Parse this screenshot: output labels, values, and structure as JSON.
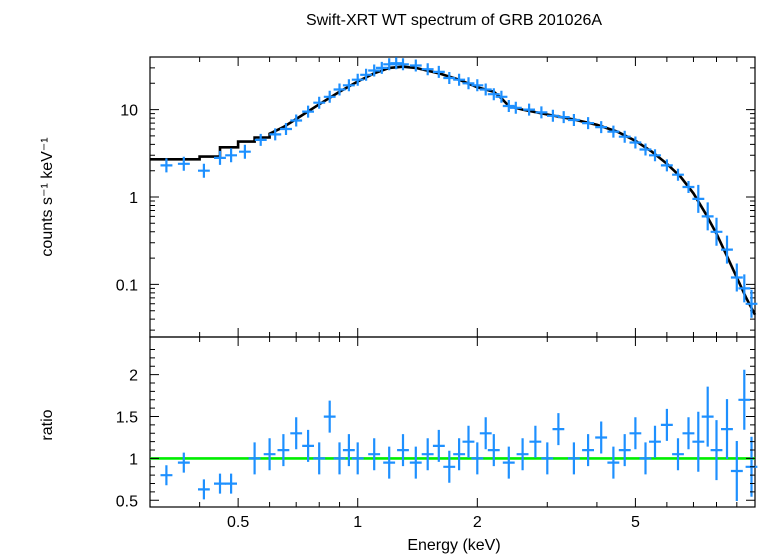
{
  "chart_data": [
    {
      "type": "scatter",
      "panel": "spectrum",
      "title": "Swift-XRT WT spectrum of GRB 201026A",
      "ylabel": "counts s⁻¹ keV⁻¹",
      "xlabel": "",
      "xscale": "log",
      "yscale": "log",
      "xlim": [
        0.3,
        10
      ],
      "ylim": [
        0.025,
        40
      ],
      "yticks": [
        {
          "value": 0.1,
          "label": "0.1"
        },
        {
          "value": 1,
          "label": "1"
        },
        {
          "value": 10,
          "label": "10"
        }
      ],
      "series": [
        {
          "kind": "data",
          "color": "#1e90ff",
          "points": [
            {
              "x": 0.33,
              "y": 2.3
            },
            {
              "x": 0.365,
              "y": 2.4
            },
            {
              "x": 0.41,
              "y": 2.0
            },
            {
              "x": 0.45,
              "y": 2.8
            },
            {
              "x": 0.48,
              "y": 3.0
            },
            {
              "x": 0.52,
              "y": 3.3
            },
            {
              "x": 0.57,
              "y": 4.5
            },
            {
              "x": 0.62,
              "y": 5.2
            },
            {
              "x": 0.66,
              "y": 6.0
            },
            {
              "x": 0.7,
              "y": 7.5
            },
            {
              "x": 0.75,
              "y": 9.5
            },
            {
              "x": 0.8,
              "y": 12
            },
            {
              "x": 0.85,
              "y": 14
            },
            {
              "x": 0.9,
              "y": 17
            },
            {
              "x": 0.95,
              "y": 19
            },
            {
              "x": 1.0,
              "y": 22
            },
            {
              "x": 1.05,
              "y": 25
            },
            {
              "x": 1.1,
              "y": 28
            },
            {
              "x": 1.15,
              "y": 30
            },
            {
              "x": 1.2,
              "y": 33
            },
            {
              "x": 1.25,
              "y": 34
            },
            {
              "x": 1.3,
              "y": 33
            },
            {
              "x": 1.4,
              "y": 32
            },
            {
              "x": 1.5,
              "y": 29
            },
            {
              "x": 1.6,
              "y": 27
            },
            {
              "x": 1.7,
              "y": 23
            },
            {
              "x": 1.8,
              "y": 22
            },
            {
              "x": 1.9,
              "y": 20
            },
            {
              "x": 2.0,
              "y": 19
            },
            {
              "x": 2.1,
              "y": 17
            },
            {
              "x": 2.2,
              "y": 15
            },
            {
              "x": 2.3,
              "y": 14
            },
            {
              "x": 2.4,
              "y": 11
            },
            {
              "x": 2.5,
              "y": 10.5
            },
            {
              "x": 2.7,
              "y": 10
            },
            {
              "x": 2.9,
              "y": 9.3
            },
            {
              "x": 3.1,
              "y": 8.5
            },
            {
              "x": 3.3,
              "y": 8.2
            },
            {
              "x": 3.5,
              "y": 7.6
            },
            {
              "x": 3.8,
              "y": 7.0
            },
            {
              "x": 4.1,
              "y": 6.3
            },
            {
              "x": 4.4,
              "y": 5.6
            },
            {
              "x": 4.7,
              "y": 4.9
            },
            {
              "x": 5.0,
              "y": 4.2
            },
            {
              "x": 5.3,
              "y": 3.5
            },
            {
              "x": 5.6,
              "y": 3.0
            },
            {
              "x": 6.0,
              "y": 2.3
            },
            {
              "x": 6.4,
              "y": 1.8
            },
            {
              "x": 6.8,
              "y": 1.3
            },
            {
              "x": 7.2,
              "y": 0.95
            },
            {
              "x": 7.6,
              "y": 0.6
            },
            {
              "x": 8.0,
              "y": 0.4
            },
            {
              "x": 8.5,
              "y": 0.25
            },
            {
              "x": 9.0,
              "y": 0.12
            },
            {
              "x": 9.4,
              "y": 0.09
            },
            {
              "x": 9.8,
              "y": 0.06
            }
          ]
        },
        {
          "kind": "model",
          "color": "#000000",
          "points": [
            {
              "x": 0.3,
              "y": 2.7
            },
            {
              "x": 0.4,
              "y": 2.9
            },
            {
              "x": 0.45,
              "y": 3.7
            },
            {
              "x": 0.5,
              "y": 4.3
            },
            {
              "x": 0.55,
              "y": 4.8
            },
            {
              "x": 0.6,
              "y": 5.3
            },
            {
              "x": 0.65,
              "y": 6.3
            },
            {
              "x": 0.7,
              "y": 7.8
            },
            {
              "x": 0.8,
              "y": 11.5
            },
            {
              "x": 0.9,
              "y": 16
            },
            {
              "x": 1.0,
              "y": 21
            },
            {
              "x": 1.1,
              "y": 26
            },
            {
              "x": 1.2,
              "y": 30
            },
            {
              "x": 1.3,
              "y": 31
            },
            {
              "x": 1.4,
              "y": 30
            },
            {
              "x": 1.6,
              "y": 26
            },
            {
              "x": 1.8,
              "y": 22
            },
            {
              "x": 2.0,
              "y": 18
            },
            {
              "x": 2.2,
              "y": 16
            },
            {
              "x": 2.3,
              "y": 13.5
            },
            {
              "x": 2.4,
              "y": 11
            },
            {
              "x": 2.6,
              "y": 10
            },
            {
              "x": 3.0,
              "y": 8.8
            },
            {
              "x": 3.5,
              "y": 7.7
            },
            {
              "x": 4.0,
              "y": 6.7
            },
            {
              "x": 4.5,
              "y": 5.6
            },
            {
              "x": 5.0,
              "y": 4.4
            },
            {
              "x": 5.5,
              "y": 3.3
            },
            {
              "x": 6.0,
              "y": 2.4
            },
            {
              "x": 6.5,
              "y": 1.7
            },
            {
              "x": 7.0,
              "y": 1.1
            },
            {
              "x": 7.5,
              "y": 0.65
            },
            {
              "x": 8.0,
              "y": 0.38
            },
            {
              "x": 8.5,
              "y": 0.21
            },
            {
              "x": 9.0,
              "y": 0.12
            },
            {
              "x": 9.5,
              "y": 0.07
            },
            {
              "x": 10.0,
              "y": 0.045
            }
          ]
        }
      ]
    },
    {
      "type": "scatter",
      "panel": "ratio",
      "ylabel": "ratio",
      "xlabel": "Energy (keV)",
      "xscale": "log",
      "yscale": "linear",
      "xlim": [
        0.3,
        10
      ],
      "ylim": [
        0.42,
        2.45
      ],
      "xticks": [
        {
          "value": 0.5,
          "label": "0.5"
        },
        {
          "value": 1,
          "label": "1"
        },
        {
          "value": 2,
          "label": "2"
        },
        {
          "value": 5,
          "label": "5"
        }
      ],
      "yticks": [
        {
          "value": 0.5,
          "label": "0.5"
        },
        {
          "value": 1,
          "label": "1"
        },
        {
          "value": 1.5,
          "label": "1.5"
        },
        {
          "value": 2,
          "label": "2"
        }
      ],
      "reference_line": {
        "y": 1,
        "color": "#00ee00"
      },
      "series": [
        {
          "kind": "ratio",
          "color": "#1e90ff",
          "points": [
            {
              "x": 0.33,
              "y": 0.8
            },
            {
              "x": 0.365,
              "y": 0.95
            },
            {
              "x": 0.41,
              "y": 0.63
            },
            {
              "x": 0.45,
              "y": 0.7
            },
            {
              "x": 0.48,
              "y": 0.7
            },
            {
              "x": 0.55,
              "y": 1.0
            },
            {
              "x": 0.6,
              "y": 1.05
            },
            {
              "x": 0.65,
              "y": 1.1
            },
            {
              "x": 0.7,
              "y": 1.3
            },
            {
              "x": 0.75,
              "y": 1.15
            },
            {
              "x": 0.8,
              "y": 1.0
            },
            {
              "x": 0.85,
              "y": 1.5
            },
            {
              "x": 0.9,
              "y": 1.0
            },
            {
              "x": 0.95,
              "y": 1.1
            },
            {
              "x": 1.0,
              "y": 1.0
            },
            {
              "x": 1.1,
              "y": 1.05
            },
            {
              "x": 1.2,
              "y": 0.95
            },
            {
              "x": 1.3,
              "y": 1.1
            },
            {
              "x": 1.4,
              "y": 0.95
            },
            {
              "x": 1.5,
              "y": 1.05
            },
            {
              "x": 1.6,
              "y": 1.15
            },
            {
              "x": 1.7,
              "y": 0.9
            },
            {
              "x": 1.8,
              "y": 1.05
            },
            {
              "x": 1.9,
              "y": 1.2
            },
            {
              "x": 2.0,
              "y": 1.0
            },
            {
              "x": 2.1,
              "y": 1.3
            },
            {
              "x": 2.2,
              "y": 1.1
            },
            {
              "x": 2.4,
              "y": 0.95
            },
            {
              "x": 2.6,
              "y": 1.05
            },
            {
              "x": 2.8,
              "y": 1.2
            },
            {
              "x": 3.0,
              "y": 1.0
            },
            {
              "x": 3.2,
              "y": 1.35
            },
            {
              "x": 3.5,
              "y": 1.0
            },
            {
              "x": 3.8,
              "y": 1.1
            },
            {
              "x": 4.1,
              "y": 1.25
            },
            {
              "x": 4.4,
              "y": 0.95
            },
            {
              "x": 4.7,
              "y": 1.1
            },
            {
              "x": 5.0,
              "y": 1.3
            },
            {
              "x": 5.3,
              "y": 1.0
            },
            {
              "x": 5.6,
              "y": 1.2
            },
            {
              "x": 6.0,
              "y": 1.4
            },
            {
              "x": 6.4,
              "y": 1.05
            },
            {
              "x": 6.8,
              "y": 1.3
            },
            {
              "x": 7.2,
              "y": 1.2
            },
            {
              "x": 7.6,
              "y": 1.5
            },
            {
              "x": 8.0,
              "y": 1.1
            },
            {
              "x": 8.5,
              "y": 1.35
            },
            {
              "x": 9.0,
              "y": 0.85
            },
            {
              "x": 9.4,
              "y": 1.7
            },
            {
              "x": 9.8,
              "y": 0.9
            }
          ]
        }
      ]
    }
  ]
}
